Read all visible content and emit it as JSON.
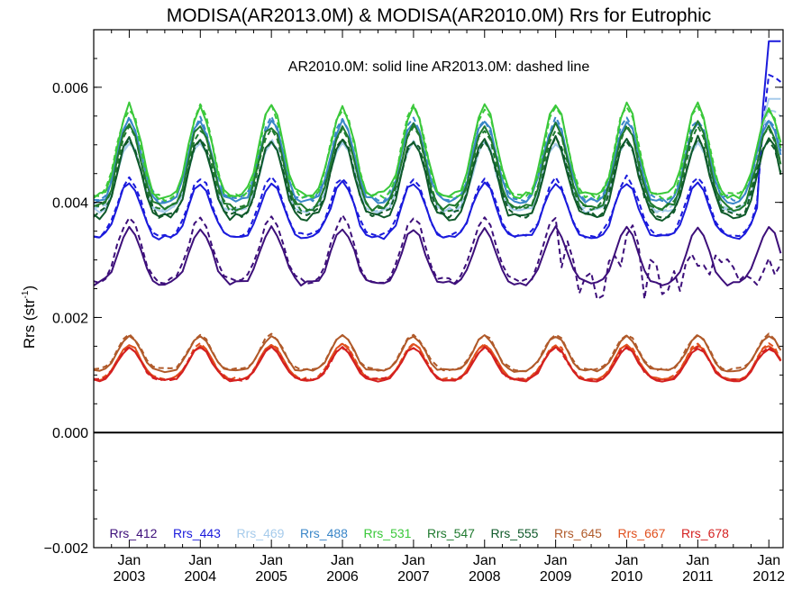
{
  "chart_data": {
    "type": "line",
    "title": "MODISA(AR2013.0M) & MODISA(AR2010.0M)  Rrs for Eutrophic",
    "annotation": "AR2010.0M: solid line   AR2013.0M: dashed line",
    "ylabel_main": "Rrs (str",
    "ylabel_sup": "-1",
    "ylabel_end": ")",
    "ylim": [
      -0.002,
      0.007
    ],
    "xlim": [
      2002.5,
      2012.2
    ],
    "yticks": [
      {
        "value": -0.002,
        "label": "−0.002"
      },
      {
        "value": 0.0,
        "label": "0.000"
      },
      {
        "value": 0.002,
        "label": "0.002"
      },
      {
        "value": 0.004,
        "label": "0.004"
      },
      {
        "value": 0.006,
        "label": "0.006"
      }
    ],
    "xticks": [
      {
        "value": 2003,
        "month": "Jan",
        "year": "2003"
      },
      {
        "value": 2004,
        "month": "Jan",
        "year": "2004"
      },
      {
        "value": 2005,
        "month": "Jan",
        "year": "2005"
      },
      {
        "value": 2006,
        "month": "Jan",
        "year": "2006"
      },
      {
        "value": 2007,
        "month": "Jan",
        "year": "2007"
      },
      {
        "value": 2008,
        "month": "Jan",
        "year": "2008"
      },
      {
        "value": 2009,
        "month": "Jan",
        "year": "2009"
      },
      {
        "value": 2010,
        "month": "Jan",
        "year": "2010"
      },
      {
        "value": 2011,
        "month": "Jan",
        "year": "2011"
      },
      {
        "value": 2012,
        "month": "Jan",
        "year": "2012"
      }
    ],
    "x_start": 2002.5,
    "x_step_months": 1,
    "zero_line": true,
    "legend_position": "bottom",
    "series": [
      {
        "name": "Rrs_412",
        "color": "#3d0f7a",
        "solid_base": 0.00295,
        "solid_amp": 0.00048,
        "dashed_base": 0.00305,
        "dashed_amp": 0.00055,
        "divergence_from": 2009.0
      },
      {
        "name": "Rrs_443",
        "color": "#1a1adc",
        "solid_base": 0.00375,
        "solid_amp": 0.00048,
        "dashed_base": 0.0038,
        "dashed_amp": 0.0005,
        "end_spike": 0.0068
      },
      {
        "name": "Rrs_469",
        "color": "#a6cbeb",
        "solid_base": 0.0043,
        "solid_amp": 0.0006,
        "dashed_base": 0.00432,
        "dashed_amp": 0.0006,
        "end_spike": 0.0058
      },
      {
        "name": "Rrs_488",
        "color": "#3a86c8",
        "solid_base": 0.00455,
        "solid_amp": 0.0007,
        "dashed_base": 0.00458,
        "dashed_amp": 0.0007
      },
      {
        "name": "Rrs_531",
        "color": "#3ac83a",
        "solid_base": 0.0047,
        "solid_amp": 0.00078,
        "dashed_base": 0.00468,
        "dashed_amp": 0.00078
      },
      {
        "name": "Rrs_547",
        "color": "#1f7a2f",
        "solid_base": 0.00445,
        "solid_amp": 0.00072,
        "dashed_base": 0.00442,
        "dashed_amp": 0.0007
      },
      {
        "name": "Rrs_555",
        "color": "#0f5a2a",
        "solid_base": 0.00425,
        "solid_amp": 0.00068,
        "dashed_base": 0.00428,
        "dashed_amp": 0.00066
      },
      {
        "name": "Rrs_645",
        "color": "#b05a2a",
        "solid_base": 0.0013,
        "solid_amp": 0.0003,
        "dashed_base": 0.00132,
        "dashed_amp": 0.0003
      },
      {
        "name": "Rrs_667",
        "color": "#e0501e",
        "solid_base": 0.00115,
        "solid_amp": 0.0003,
        "dashed_base": 0.00116,
        "dashed_amp": 0.0003
      },
      {
        "name": "Rrs_678",
        "color": "#d42020",
        "solid_base": 0.00112,
        "solid_amp": 0.00028,
        "dashed_base": 0.00113,
        "dashed_amp": 0.00028
      }
    ]
  }
}
